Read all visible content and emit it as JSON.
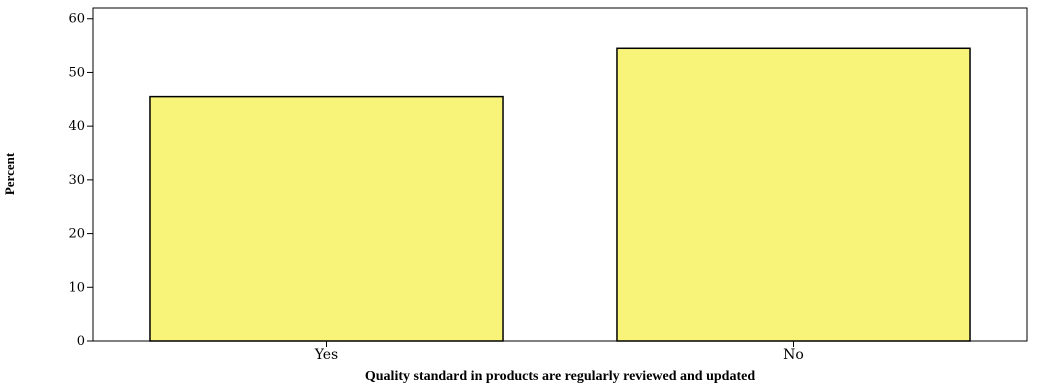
{
  "chart_data": {
    "type": "bar",
    "categories": [
      "Yes",
      "No"
    ],
    "values": [
      45.5,
      54.5
    ],
    "xlabel": "Quality standard in products are regularly reviewed and updated",
    "ylabel": "Percent",
    "ylim": [
      0,
      62
    ],
    "yticks": [
      "0",
      "10",
      "20",
      "30",
      "40",
      "50",
      "60"
    ],
    "grid": false,
    "colors": {
      "bar_fill": "#f8f47a",
      "bar_stroke": "#000000"
    }
  }
}
